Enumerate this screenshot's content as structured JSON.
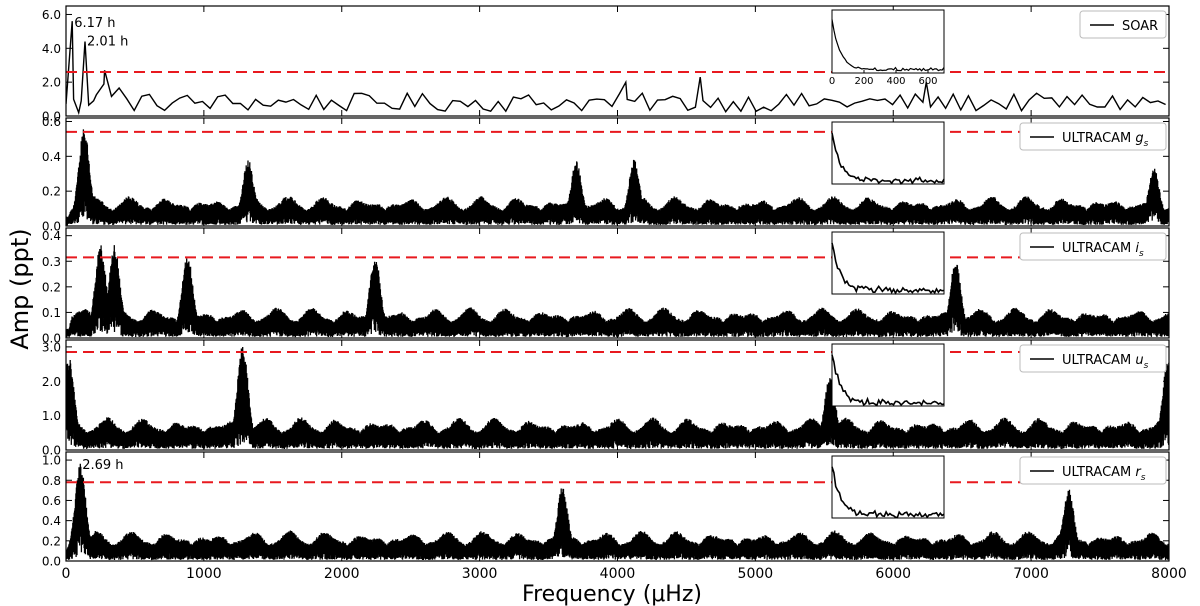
{
  "figure": {
    "xlabel": "Frequency (μHz)",
    "ylabel": "Amp (ppt)"
  },
  "colors": {
    "threshold": "#e8191f",
    "trace": "#000000",
    "background": "#ffffff"
  },
  "chart_data": [
    {
      "type": "line",
      "legend": "SOAR",
      "x_range": [
        0,
        8000
      ],
      "ylim": [
        0,
        6.5
      ],
      "yticks": [
        "0.0",
        "2.0",
        "4.0",
        "6.0"
      ],
      "ytick_values": [
        0,
        2,
        4,
        6
      ],
      "threshold": 2.6,
      "annotations": [
        {
          "text": "6.17 h",
          "x": 45,
          "y": 5.5
        },
        {
          "text": "2.01 h",
          "x": 138,
          "y": 4.4
        }
      ],
      "peaks": [
        {
          "x": 45,
          "y": 5.6
        },
        {
          "x": 138,
          "y": 4.4
        },
        {
          "x": 280,
          "y": 2.7
        },
        {
          "x": 4060,
          "y": 2.0
        },
        {
          "x": 4600,
          "y": 2.3
        },
        {
          "x": 6240,
          "y": 2.0
        }
      ],
      "inset": {
        "xticks": [
          "0",
          "200",
          "400",
          "600"
        ],
        "xtick_values": [
          0,
          200,
          400,
          600
        ],
        "xlim": [
          0,
          700
        ]
      }
    },
    {
      "type": "line",
      "legend": "ULTRACAM g",
      "legend_sub": "s",
      "x_range": [
        0,
        8000
      ],
      "ylim": [
        0,
        0.62
      ],
      "yticks": [
        "0.0",
        "0.2",
        "0.4",
        "0.6"
      ],
      "ytick_values": [
        0,
        0.2,
        0.4,
        0.6
      ],
      "threshold": 0.54,
      "peaks": [
        {
          "x": 130,
          "y": 0.51
        },
        {
          "x": 1320,
          "y": 0.33
        },
        {
          "x": 3700,
          "y": 0.32
        },
        {
          "x": 4120,
          "y": 0.33
        },
        {
          "x": 7890,
          "y": 0.28
        }
      ]
    },
    {
      "type": "line",
      "legend": "ULTRACAM i",
      "legend_sub": "s",
      "x_range": [
        0,
        8000
      ],
      "ylim": [
        0,
        0.43
      ],
      "yticks": [
        "0.0",
        "0.1",
        "0.2",
        "0.3",
        "0.4"
      ],
      "ytick_values": [
        0,
        0.1,
        0.2,
        0.3,
        0.4
      ],
      "threshold": 0.315,
      "peaks": [
        {
          "x": 250,
          "y": 0.33
        },
        {
          "x": 350,
          "y": 0.33
        },
        {
          "x": 880,
          "y": 0.29
        },
        {
          "x": 2240,
          "y": 0.29
        },
        {
          "x": 6450,
          "y": 0.27
        }
      ]
    },
    {
      "type": "line",
      "legend": "ULTRACAM u",
      "legend_sub": "s",
      "x_range": [
        0,
        8000
      ],
      "ylim": [
        0,
        3.2
      ],
      "yticks": [
        "0.0",
        "1.0",
        "2.0",
        "3.0"
      ],
      "ytick_values": [
        0,
        1,
        2,
        3
      ],
      "threshold": 2.85,
      "peaks": [
        {
          "x": 20,
          "y": 2.4
        },
        {
          "x": 1280,
          "y": 2.8
        },
        {
          "x": 5540,
          "y": 1.9
        },
        {
          "x": 7990,
          "y": 2.3
        }
      ]
    },
    {
      "type": "line",
      "legend": "ULTRACAM r",
      "legend_sub": "s",
      "x_range": [
        0,
        8000
      ],
      "ylim": [
        0,
        1.08
      ],
      "yticks": [
        "0.0",
        "0.2",
        "0.4",
        "0.6",
        "0.8",
        "1.0"
      ],
      "ytick_values": [
        0,
        0.2,
        0.4,
        0.6,
        0.8,
        1.0
      ],
      "threshold": 0.78,
      "annotations": [
        {
          "text": "2.69 h",
          "x": 103,
          "y": 0.95
        }
      ],
      "peaks": [
        {
          "x": 103,
          "y": 0.88
        },
        {
          "x": 3600,
          "y": 0.65
        },
        {
          "x": 7270,
          "y": 0.63
        }
      ],
      "xticks": [
        "0",
        "1000",
        "2000",
        "3000",
        "4000",
        "5000",
        "6000",
        "7000",
        "8000"
      ],
      "xtick_values": [
        0,
        1000,
        2000,
        3000,
        4000,
        5000,
        6000,
        7000,
        8000
      ]
    }
  ]
}
